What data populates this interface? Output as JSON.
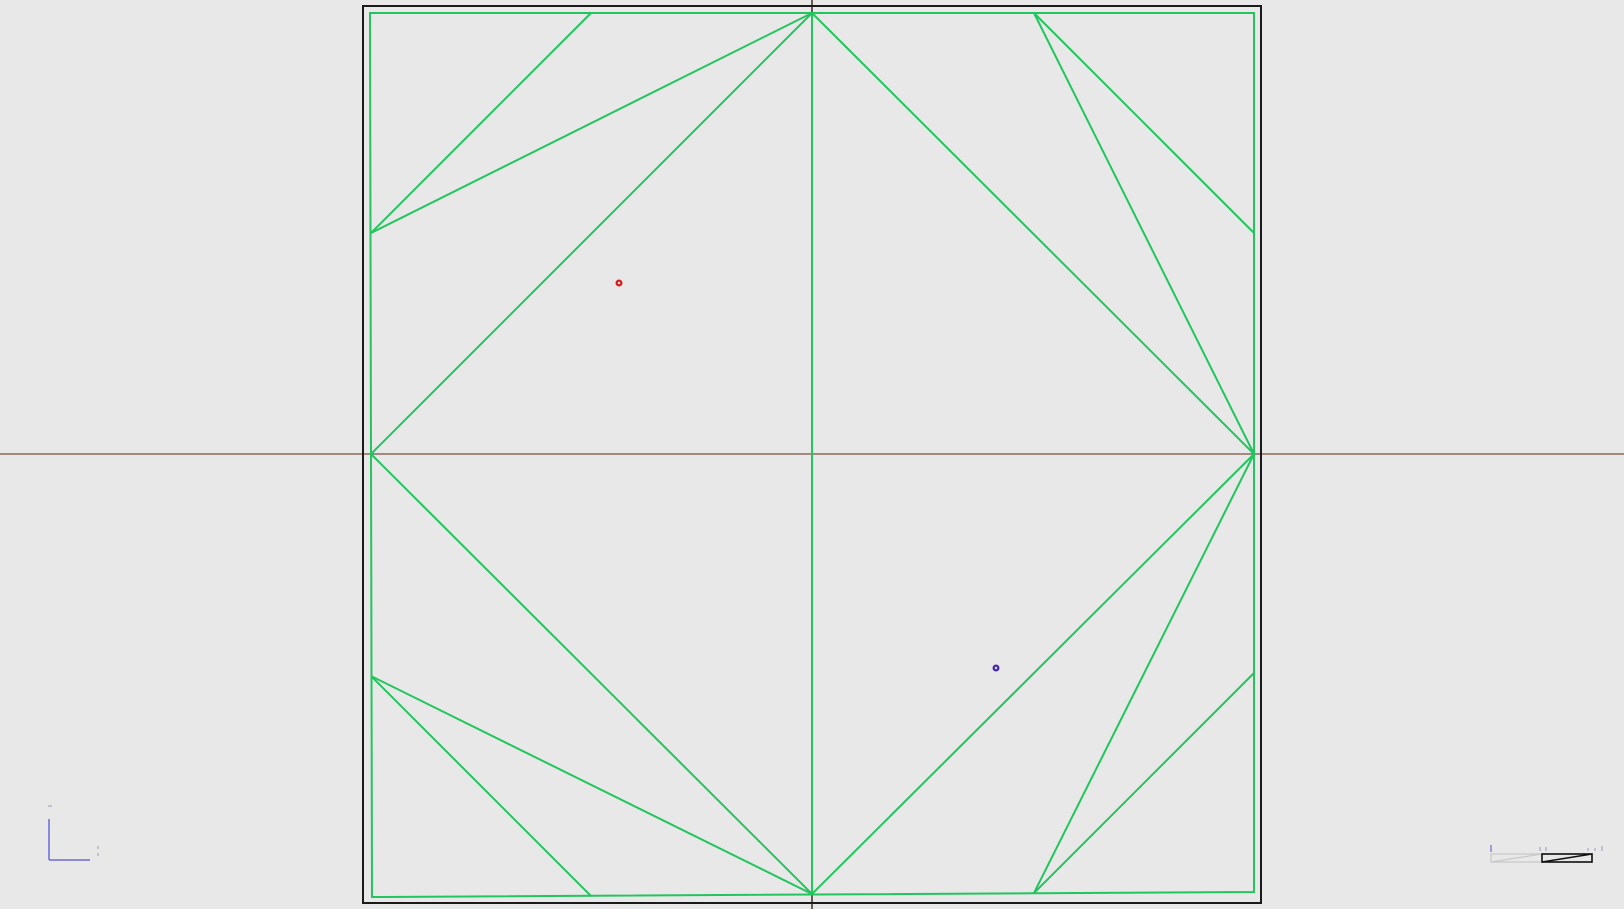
{
  "viewport": {
    "corner_info_text": "",
    "background_color": "#e8e8e8"
  },
  "colors": {
    "mesh_edge": "#22c55e",
    "border": "#1a1a1a",
    "x_axis": "#8a6a5a",
    "y_axis": "#3a2f2a",
    "marker_red": "#d62020",
    "marker_purple": "#4b2aa8",
    "axes_gizmo": "#6a6ad8",
    "scale_bar": "#111111"
  },
  "markers": [
    {
      "name": "red-point-marker",
      "color_key": "marker_red"
    },
    {
      "name": "purple-point-marker",
      "color_key": "marker_purple"
    }
  ],
  "axes_gizmo": {
    "x_label": "",
    "y_label": ""
  },
  "scale_bar": {
    "labels": []
  }
}
